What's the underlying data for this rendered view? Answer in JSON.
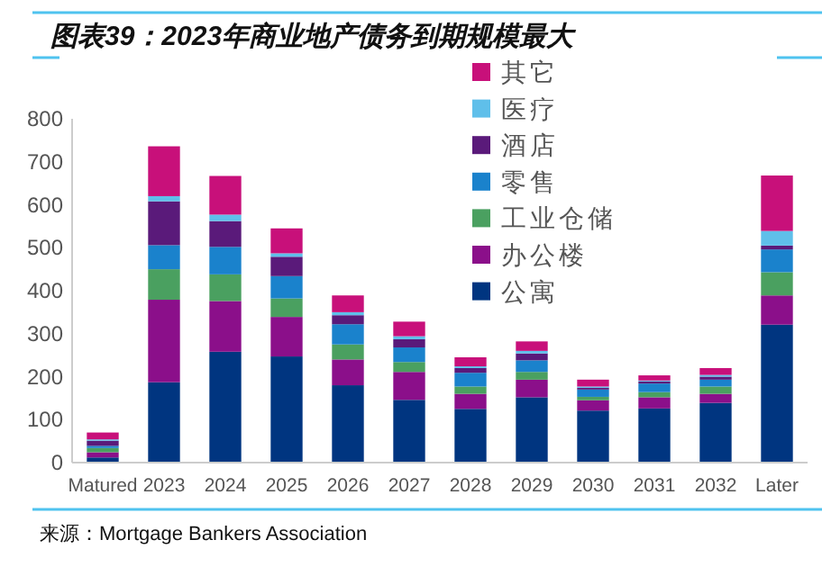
{
  "chart_data": {
    "type": "bar",
    "stacked": true,
    "title": "图表39：2023年商业地产债务到期规模最大",
    "categories": [
      "Matured",
      "2023",
      "2024",
      "2025",
      "2026",
      "2027",
      "2028",
      "2029",
      "2030",
      "2031",
      "2032",
      "Later"
    ],
    "series": [
      {
        "name": "公寓",
        "color": "#003580",
        "values": [
          12,
          187,
          258,
          247,
          180,
          146,
          125,
          152,
          121,
          126,
          139,
          321
        ]
      },
      {
        "name": "办公楼",
        "color": "#8b0f8a",
        "values": [
          12,
          192,
          118,
          92,
          60,
          65,
          35,
          41,
          24,
          26,
          21,
          68
        ]
      },
      {
        "name": "工业仓储",
        "color": "#4aa060",
        "values": [
          10,
          71,
          62,
          43,
          35,
          23,
          17,
          18,
          8,
          12,
          17,
          54
        ]
      },
      {
        "name": "零售",
        "color": "#1a82cc",
        "values": [
          5,
          56,
          64,
          52,
          47,
          34,
          32,
          27,
          17,
          20,
          16,
          53
        ]
      },
      {
        "name": "酒店",
        "color": "#5a1a7a",
        "values": [
          12,
          102,
          60,
          45,
          21,
          19,
          11,
          16,
          4,
          5,
          7,
          9
        ]
      },
      {
        "name": "医疗",
        "color": "#5fbfea",
        "values": [
          3,
          12,
          15,
          8,
          7,
          7,
          4,
          6,
          3,
          2,
          4,
          34
        ]
      },
      {
        "name": "其它",
        "color": "#c8107a",
        "values": [
          16,
          116,
          90,
          58,
          39,
          34,
          21,
          22,
          16,
          12,
          16,
          129
        ]
      }
    ],
    "ylim": [
      0,
      800
    ],
    "yticks": [
      0,
      100,
      200,
      300,
      400,
      500,
      600,
      700,
      800
    ],
    "grid": false,
    "legend": "top right",
    "annotations": [
      "来源：Mortgage Bankers Association"
    ]
  }
}
